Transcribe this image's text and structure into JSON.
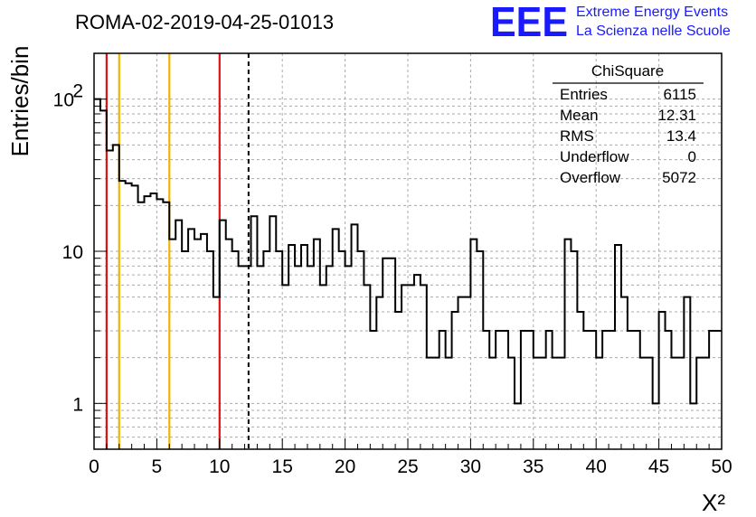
{
  "chart_data": {
    "type": "histogram",
    "title": "ROMA-02-2019-04-25-01013",
    "xlabel": "X²",
    "ylabel": "Entries/bin",
    "xlim": [
      0,
      50
    ],
    "ylim": [
      0.5,
      200
    ],
    "yscale": "log",
    "grid": true,
    "bin_width": 0.5,
    "x_ticks": [
      "0",
      "5",
      "10",
      "15",
      "20",
      "25",
      "30",
      "35",
      "40",
      "45",
      "50"
    ],
    "y_ticks": [
      {
        "value": 1,
        "label": "1"
      },
      {
        "value": 10,
        "label": "10"
      },
      {
        "value": 100,
        "label": "10",
        "sup": "2"
      }
    ],
    "bin_values": [
      100,
      84,
      46,
      50,
      29,
      28,
      27,
      21,
      23,
      24,
      22,
      21,
      12,
      16,
      10,
      14,
      12,
      13,
      10,
      5,
      16,
      12,
      10,
      8,
      8,
      17,
      8,
      10,
      17,
      10,
      6,
      11,
      8,
      11,
      8,
      12,
      6,
      8,
      14,
      10,
      8,
      15,
      10,
      6,
      3,
      5,
      9,
      9,
      4,
      6,
      6,
      7,
      6,
      2,
      2,
      3,
      2,
      4,
      5,
      5,
      12,
      10,
      3,
      2,
      3,
      3,
      2,
      1,
      3,
      3,
      2,
      2,
      3,
      2,
      2,
      12,
      10,
      4,
      3,
      3,
      2,
      3,
      3,
      11,
      5,
      3,
      3,
      2,
      2,
      1,
      4,
      3,
      2,
      2,
      5,
      1,
      2,
      2,
      3,
      3
    ],
    "bin_values_note_omitted": false,
    "markers": [
      {
        "x": 1,
        "color": "#dd1111",
        "style": "solid"
      },
      {
        "x": 2,
        "color": "#f0b400",
        "style": "solid"
      },
      {
        "x": 6,
        "color": "#f0b400",
        "style": "solid"
      },
      {
        "x": 10,
        "color": "#dd1111",
        "style": "solid"
      },
      {
        "x": 12.31,
        "color": "#000000",
        "style": "dashed"
      }
    ]
  },
  "stats": {
    "title": "ChiSquare",
    "rows": [
      {
        "label": "Entries",
        "value": "6115"
      },
      {
        "label": "Mean",
        "value": "12.31"
      },
      {
        "label": "RMS",
        "value": "13.4"
      },
      {
        "label": "Underflow",
        "value": "0"
      },
      {
        "label": "Overflow",
        "value": "5072"
      }
    ]
  },
  "logo": {
    "mark": "EEE",
    "line1": "Extreme Energy Events",
    "line2": "La Scienza nelle Scuole",
    "color": "#1a1aff"
  }
}
